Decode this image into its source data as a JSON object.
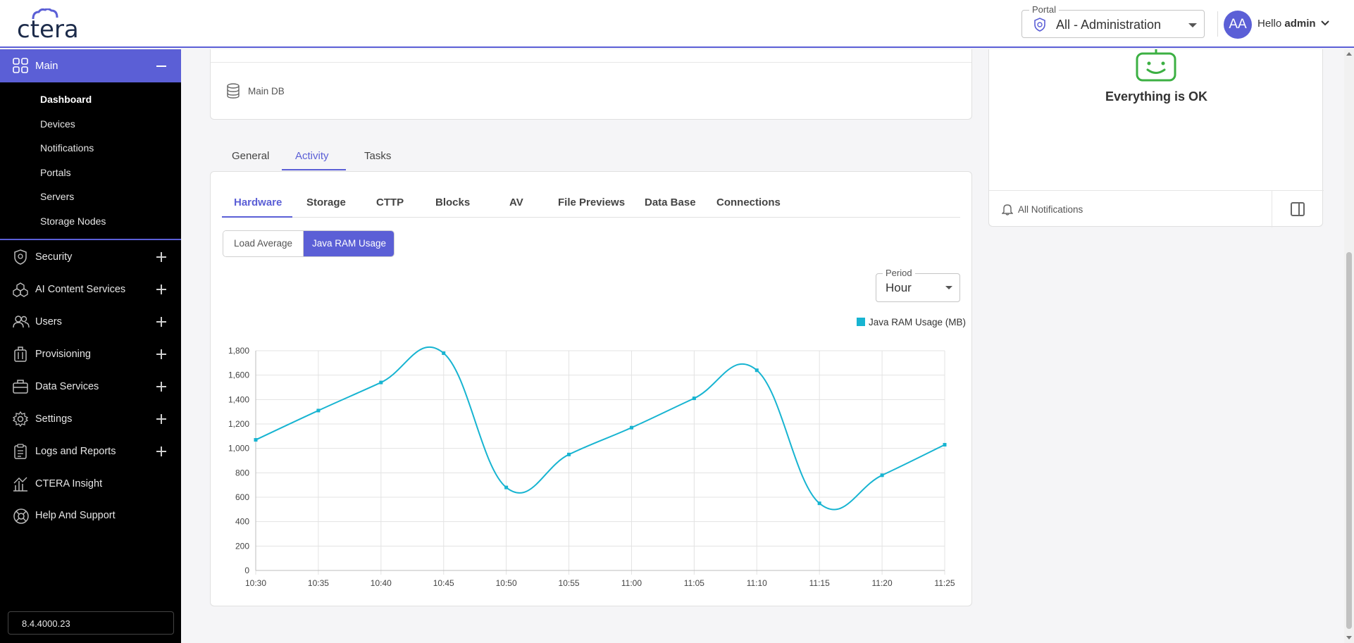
{
  "header": {
    "logo_text": "ctera",
    "portal_label": "Portal",
    "portal_value": "All - Administration",
    "avatar_initials": "AA",
    "greeting": "Hello",
    "username": "admin"
  },
  "sidebar": {
    "main_label": "Main",
    "sub_items": [
      "Dashboard",
      "Devices",
      "Notifications",
      "Portals",
      "Servers",
      "Storage Nodes"
    ],
    "items": [
      "Security",
      "AI Content Services",
      "Users",
      "Provisioning",
      "Data Services",
      "Settings",
      "Logs and Reports",
      "CTERA Insight",
      "Help And Support"
    ],
    "version": "8.4.4000.23"
  },
  "top_card": {
    "db_label": "Main DB"
  },
  "status_card": {
    "status_text": "Everything is OK",
    "notifications_label": "All Notifications"
  },
  "tabs": [
    "General",
    "Activity",
    "Tasks"
  ],
  "active_tab": "Activity",
  "sub_tabs": [
    "Hardware",
    "Storage",
    "CTTP",
    "Blocks",
    "AV",
    "File Previews",
    "Data Base",
    "Connections"
  ],
  "active_sub_tab": "Hardware",
  "toggle": {
    "load_average": "Load Average",
    "java_ram_usage": "Java RAM Usage"
  },
  "period": {
    "label": "Period",
    "value": "Hour"
  },
  "colors": {
    "accent": "#5b5fd6",
    "series": "#17b4d1",
    "status_ok": "#3cb043"
  },
  "chart_data": {
    "type": "line",
    "title": "",
    "xlabel": "",
    "ylabel": "",
    "legend_position": "top-right",
    "grid": true,
    "ylim": [
      0,
      1800
    ],
    "yticks": [
      "0",
      "200",
      "400",
      "600",
      "800",
      "1,000",
      "1,200",
      "1,400",
      "1,600",
      "1,800"
    ],
    "categories": [
      "10:30",
      "10:35",
      "10:40",
      "10:45",
      "10:50",
      "10:55",
      "11:00",
      "11:05",
      "11:10",
      "11:15",
      "11:20",
      "11:25"
    ],
    "series": [
      {
        "name": "Java RAM Usage (MB)",
        "values": [
          1070,
          1310,
          1540,
          1780,
          680,
          950,
          1170,
          1410,
          1640,
          550,
          780,
          1030
        ]
      }
    ]
  }
}
